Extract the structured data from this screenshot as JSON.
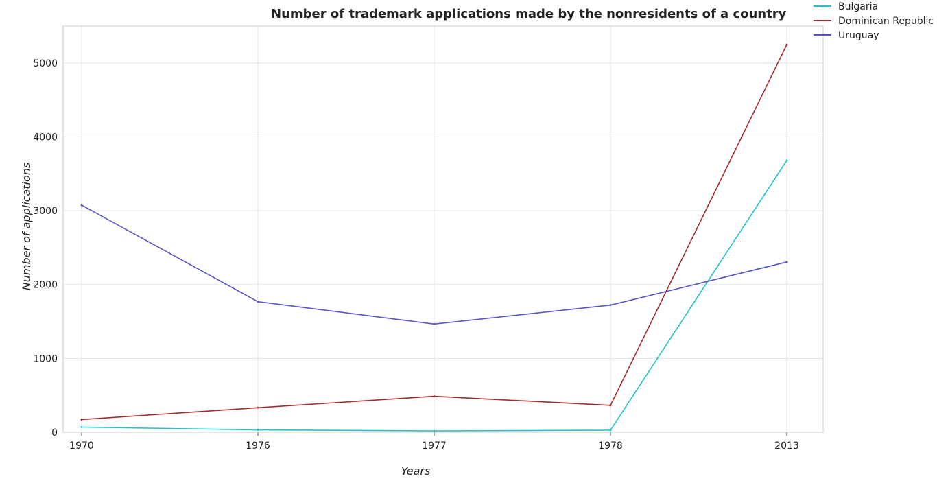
{
  "chart_data": {
    "type": "line",
    "title": "Number of trademark applications made by the nonresidents of a country",
    "xlabel": "Years",
    "ylabel": "Number of applications",
    "categories": [
      "1970",
      "1976",
      "1977",
      "1978",
      "2013"
    ],
    "ylim": [
      0,
      5500
    ],
    "yticks": [
      0,
      1000,
      2000,
      3000,
      4000,
      5000
    ],
    "grid": true,
    "legend_position": "top-right",
    "series": [
      {
        "name": "Bulgaria",
        "color": "#20c5c5",
        "values": [
          70,
          32,
          18,
          28,
          3680
        ]
      },
      {
        "name": "Dominican Republic",
        "color": "#a52a2a",
        "values": [
          172,
          332,
          487,
          364,
          5248
        ]
      },
      {
        "name": "Uruguay",
        "color": "#5a54c4",
        "values": [
          3075,
          1768,
          1465,
          1722,
          2305
        ]
      }
    ]
  }
}
